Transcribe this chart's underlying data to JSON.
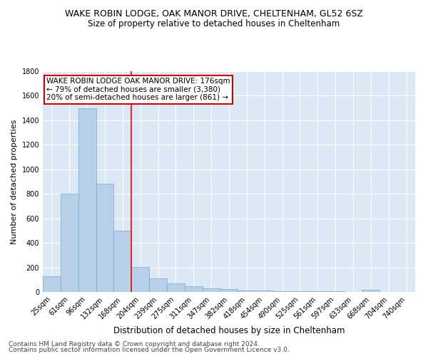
{
  "title": "WAKE ROBIN LODGE, OAK MANOR DRIVE, CHELTENHAM, GL52 6SZ",
  "subtitle": "Size of property relative to detached houses in Cheltenham",
  "xlabel": "Distribution of detached houses by size in Cheltenham",
  "ylabel": "Number of detached properties",
  "categories": [
    "25sqm",
    "61sqm",
    "96sqm",
    "132sqm",
    "168sqm",
    "204sqm",
    "239sqm",
    "275sqm",
    "311sqm",
    "347sqm",
    "382sqm",
    "418sqm",
    "454sqm",
    "490sqm",
    "525sqm",
    "561sqm",
    "597sqm",
    "633sqm",
    "668sqm",
    "704sqm",
    "740sqm"
  ],
  "values": [
    130,
    800,
    1500,
    880,
    500,
    205,
    110,
    70,
    45,
    30,
    25,
    10,
    10,
    5,
    5,
    5,
    5,
    0,
    20,
    0,
    0
  ],
  "bar_color": "#b8cfe8",
  "bar_edge_color": "#7aaad0",
  "red_line_x": 4.5,
  "annotation_text": "WAKE ROBIN LODGE OAK MANOR DRIVE: 176sqm\n← 79% of detached houses are smaller (3,380)\n20% of semi-detached houses are larger (861) →",
  "annotation_box_color": "#ffffff",
  "annotation_box_edge_color": "#cc0000",
  "ylim": [
    0,
    1800
  ],
  "yticks": [
    0,
    200,
    400,
    600,
    800,
    1000,
    1200,
    1400,
    1600,
    1800
  ],
  "background_color": "#dce8f5",
  "footer1": "Contains HM Land Registry data © Crown copyright and database right 2024.",
  "footer2": "Contains public sector information licensed under the Open Government Licence v3.0.",
  "title_fontsize": 9,
  "subtitle_fontsize": 8.5,
  "xlabel_fontsize": 8.5,
  "ylabel_fontsize": 8,
  "tick_fontsize": 7,
  "annotation_fontsize": 7.5,
  "footer_fontsize": 6.5
}
